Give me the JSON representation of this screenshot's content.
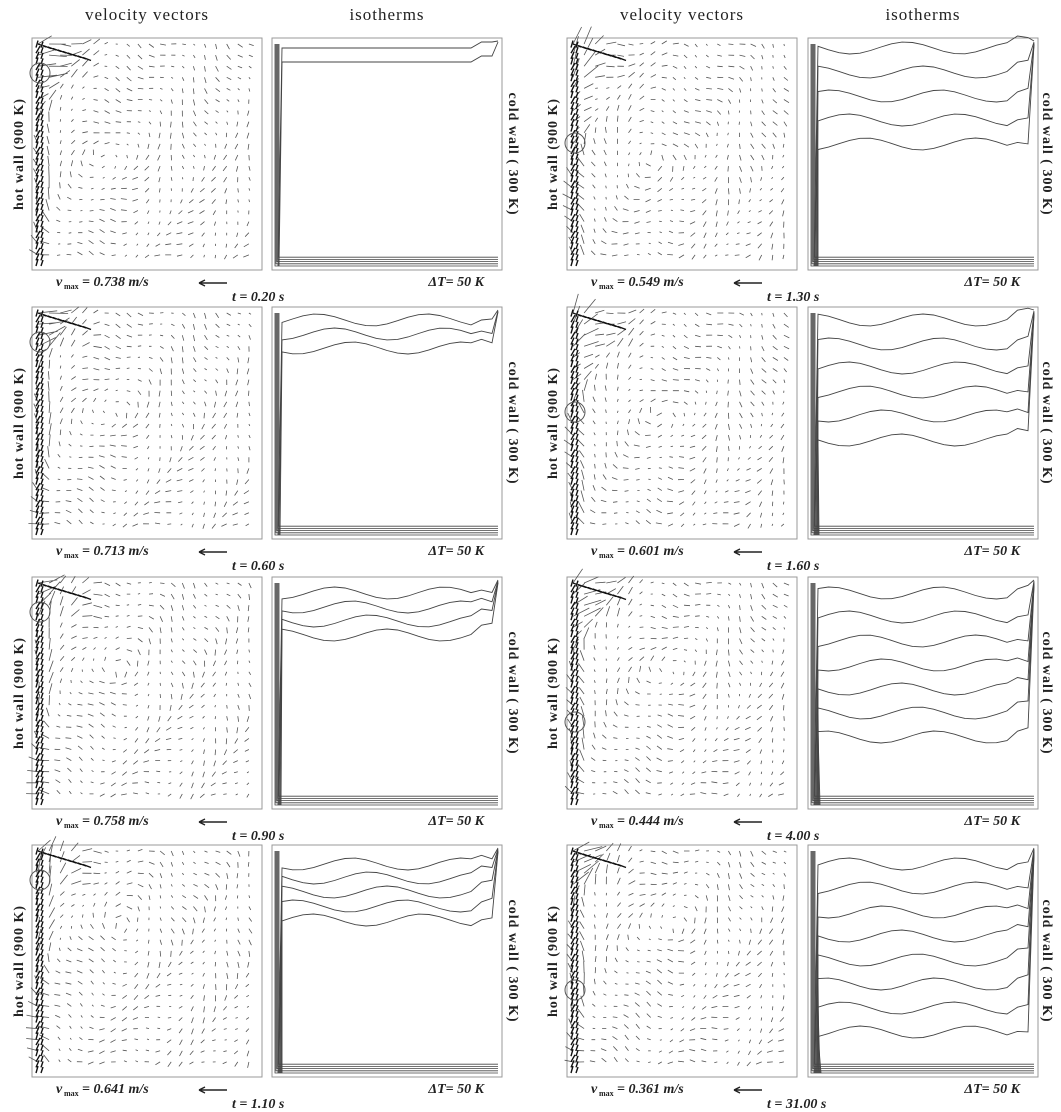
{
  "headers": [
    {
      "vectors": "velocity vectors",
      "isotherms": "isotherms"
    },
    {
      "vectors": "velocity vectors",
      "isotherms": "isotherms"
    }
  ],
  "panels": [
    {
      "hot_wall": "hot wall (900 K)",
      "cold_wall": "cold wall ( 300 K)",
      "vmax_symbol": "v",
      "vmax_subscript": "max",
      "vmax": "= 0.738 m/s",
      "time": "t =  0.20 s",
      "delta_t": "ΔT= 50 K"
    },
    {
      "hot_wall": "hot wall (900 K)",
      "cold_wall": "cold wall ( 300 K)",
      "vmax_symbol": "v",
      "vmax_subscript": "max",
      "vmax": "= 0.713 m/s",
      "time": "t =  0.60 s",
      "delta_t": "ΔT= 50 K"
    },
    {
      "hot_wall": "hot wall (900 K)",
      "cold_wall": "cold wall ( 300 K)",
      "vmax_symbol": "v",
      "vmax_subscript": "max",
      "vmax": "= 0.758 m/s",
      "time": "t =  0.90 s",
      "delta_t": "ΔT= 50 K"
    },
    {
      "hot_wall": "hot wall (900 K)",
      "cold_wall": "cold wall ( 300 K)",
      "vmax_symbol": "v",
      "vmax_subscript": "max",
      "vmax": "= 0.641 m/s",
      "time": "t =  1.10 s",
      "delta_t": "ΔT= 50 K"
    },
    {
      "hot_wall": "hot wall (900 K)",
      "cold_wall": "cold wall ( 300 K)",
      "vmax_symbol": "v",
      "vmax_subscript": "max",
      "vmax": "= 0.549 m/s",
      "time": "t =  1.30 s",
      "delta_t": "ΔT= 50 K"
    },
    {
      "hot_wall": "hot wall (900 K)",
      "cold_wall": "cold wall ( 300 K)",
      "vmax_symbol": "v",
      "vmax_subscript": "max",
      "vmax": "= 0.601 m/s",
      "time": "t =  1.60 s",
      "delta_t": "ΔT= 50 K"
    },
    {
      "hot_wall": "hot wall (900 K)",
      "cold_wall": "cold wall ( 300 K)",
      "vmax_symbol": "v",
      "vmax_subscript": "max",
      "vmax": "= 0.444 m/s",
      "time": "t =  4.00 s",
      "delta_t": "ΔT= 50 K"
    },
    {
      "hot_wall": "hot wall (900 K)",
      "cold_wall": "cold wall ( 300 K)",
      "vmax_symbol": "v",
      "vmax_subscript": "max",
      "vmax": "= 0.361 m/s",
      "time": "t =  31.00 s",
      "delta_t": "ΔT= 50 K"
    }
  ]
}
